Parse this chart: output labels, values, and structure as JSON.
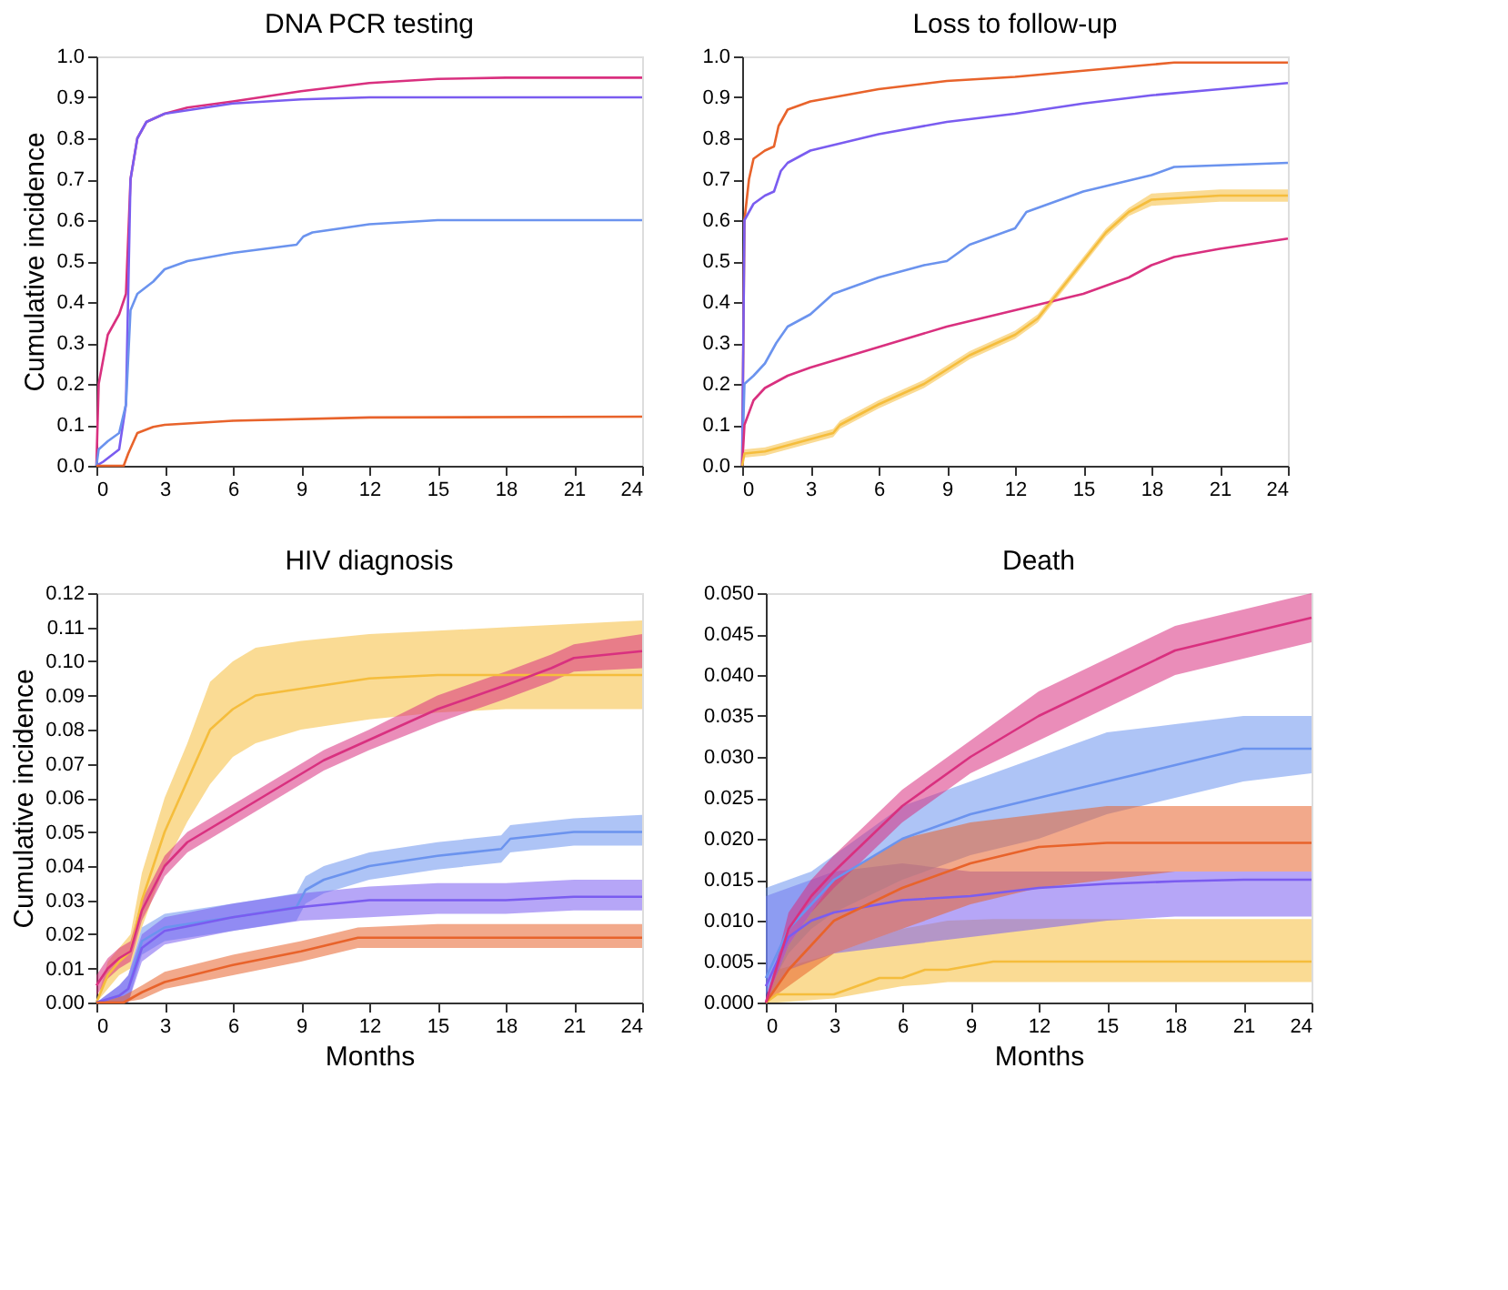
{
  "chart_data": [
    {
      "type": "line",
      "title": "DNA PCR testing",
      "ylabel": "Cumulative incidence",
      "xlim": [
        0,
        24
      ],
      "ylim": [
        0,
        1
      ],
      "xticks": [
        0,
        3,
        6,
        9,
        12,
        15,
        18,
        21,
        24
      ],
      "yticks": [
        {
          "value": 0,
          "label": "0.0"
        },
        {
          "value": 0.1,
          "label": "0.1"
        },
        {
          "value": 0.2,
          "label": "0.2"
        },
        {
          "value": 0.3,
          "label": "0.3"
        },
        {
          "value": 0.4,
          "label": "0.4"
        },
        {
          "value": 0.5,
          "label": "0.5"
        },
        {
          "value": 0.6,
          "label": "0.6"
        },
        {
          "value": 0.7,
          "label": "0.7"
        },
        {
          "value": 0.8,
          "label": "0.8"
        },
        {
          "value": 0.9,
          "label": "0.9"
        },
        {
          "value": 1,
          "label": "1.0"
        }
      ],
      "series": [
        {
          "color": "#d9307f",
          "x": [
            0,
            0.1,
            0.5,
            1,
            1.3,
            1.5,
            1.8,
            2.2,
            3,
            4,
            6,
            9,
            12,
            15,
            18,
            24
          ],
          "values": [
            0,
            0.2,
            0.32,
            0.37,
            0.42,
            0.7,
            0.8,
            0.84,
            0.86,
            0.875,
            0.89,
            0.915,
            0.935,
            0.945,
            0.948,
            0.948
          ]
        },
        {
          "color": "#7a5cf0",
          "x": [
            0,
            0.3,
            1,
            1.3,
            1.5,
            1.8,
            2.2,
            3,
            6,
            9,
            12,
            24
          ],
          "values": [
            0,
            0.01,
            0.04,
            0.15,
            0.7,
            0.8,
            0.84,
            0.86,
            0.885,
            0.895,
            0.9,
            0.9
          ]
        },
        {
          "color": "#6b93ee",
          "x": [
            0,
            0.1,
            0.5,
            1,
            1.3,
            1.5,
            1.8,
            2.5,
            3,
            4,
            6,
            8.8,
            9.1,
            9.5,
            12,
            15,
            24
          ],
          "values": [
            0,
            0.04,
            0.06,
            0.08,
            0.15,
            0.38,
            0.42,
            0.45,
            0.48,
            0.5,
            0.52,
            0.54,
            0.56,
            0.57,
            0.59,
            0.6,
            0.6
          ]
        },
        {
          "color": "#e8632b",
          "x": [
            0,
            1.2,
            1.4,
            1.8,
            2.5,
            3,
            6,
            12,
            24
          ],
          "values": [
            0,
            0,
            0.03,
            0.08,
            0.095,
            0.1,
            0.11,
            0.118,
            0.12
          ]
        }
      ]
    },
    {
      "type": "line",
      "title": "Loss to follow-up",
      "xlim": [
        0,
        24
      ],
      "ylim": [
        0,
        1
      ],
      "xticks": [
        0,
        3,
        6,
        9,
        12,
        15,
        18,
        21,
        24
      ],
      "yticks": [
        {
          "value": 0,
          "label": "0.0"
        },
        {
          "value": 0.1,
          "label": "0.1"
        },
        {
          "value": 0.2,
          "label": "0.2"
        },
        {
          "value": 0.3,
          "label": "0.3"
        },
        {
          "value": 0.4,
          "label": "0.4"
        },
        {
          "value": 0.5,
          "label": "0.5"
        },
        {
          "value": 0.6,
          "label": "0.6"
        },
        {
          "value": 0.7,
          "label": "0.7"
        },
        {
          "value": 0.8,
          "label": "0.8"
        },
        {
          "value": 0.9,
          "label": "0.9"
        },
        {
          "value": 1,
          "label": "1.0"
        }
      ],
      "series": [
        {
          "color": "#e8632b",
          "x": [
            0,
            0.1,
            0.3,
            0.5,
            1,
            1.4,
            1.6,
            2,
            3,
            6,
            9,
            12,
            15,
            18,
            19,
            24
          ],
          "values": [
            0,
            0.6,
            0.7,
            0.75,
            0.77,
            0.78,
            0.83,
            0.87,
            0.89,
            0.92,
            0.94,
            0.95,
            0.965,
            0.98,
            0.985,
            0.985
          ]
        },
        {
          "color": "#7a5cf0",
          "x": [
            0,
            0.1,
            0.5,
            1,
            1.4,
            1.7,
            2,
            3,
            6,
            9,
            12,
            15,
            18,
            21,
            24
          ],
          "values": [
            0,
            0.6,
            0.64,
            0.66,
            0.67,
            0.72,
            0.74,
            0.77,
            0.81,
            0.84,
            0.86,
            0.885,
            0.905,
            0.92,
            0.935
          ]
        },
        {
          "color": "#6b93ee",
          "x": [
            0,
            0.1,
            0.5,
            1,
            1.5,
            2,
            3,
            4,
            5,
            6,
            8,
            9,
            10,
            12,
            12.5,
            15,
            18,
            19,
            24
          ],
          "values": [
            0,
            0.2,
            0.22,
            0.25,
            0.3,
            0.34,
            0.37,
            0.42,
            0.44,
            0.46,
            0.49,
            0.5,
            0.54,
            0.58,
            0.62,
            0.67,
            0.71,
            0.73,
            0.74
          ]
        },
        {
          "color": "#d9307f",
          "x": [
            0,
            0.1,
            0.5,
            1,
            2,
            3,
            6,
            9,
            12,
            15,
            17,
            18,
            19,
            21,
            24
          ],
          "values": [
            0,
            0.1,
            0.16,
            0.19,
            0.22,
            0.24,
            0.29,
            0.34,
            0.38,
            0.42,
            0.46,
            0.49,
            0.51,
            0.53,
            0.555
          ]
        },
        {
          "color": "#f5bd3c",
          "x": [
            0,
            0.1,
            1,
            2,
            3,
            4,
            4.3,
            6,
            8,
            10,
            12,
            13,
            14,
            15,
            16,
            17,
            18,
            21,
            24
          ],
          "values": [
            0,
            0.03,
            0.035,
            0.05,
            0.065,
            0.08,
            0.1,
            0.15,
            0.2,
            0.27,
            0.32,
            0.36,
            0.43,
            0.5,
            0.57,
            0.62,
            0.65,
            0.66,
            0.66
          ],
          "lower": [
            0,
            0.02,
            0.025,
            0.04,
            0.055,
            0.07,
            0.09,
            0.14,
            0.19,
            0.26,
            0.31,
            0.35,
            0.42,
            0.49,
            0.56,
            0.61,
            0.635,
            0.645,
            0.645
          ],
          "upper": [
            0,
            0.04,
            0.045,
            0.06,
            0.075,
            0.09,
            0.11,
            0.16,
            0.21,
            0.28,
            0.33,
            0.37,
            0.44,
            0.51,
            0.58,
            0.63,
            0.665,
            0.675,
            0.675
          ]
        }
      ]
    },
    {
      "type": "line",
      "title": "HIV diagnosis",
      "xlabel": "Months",
      "ylabel": "Cumulative incidence",
      "xlim": [
        0,
        24
      ],
      "ylim": [
        0,
        0.12
      ],
      "xticks": [
        0,
        3,
        6,
        9,
        12,
        15,
        18,
        21,
        24
      ],
      "yticks": [
        {
          "value": 0,
          "label": "0.00"
        },
        {
          "value": 0.01,
          "label": "0.01"
        },
        {
          "value": 0.02,
          "label": "0.02"
        },
        {
          "value": 0.03,
          "label": "0.03"
        },
        {
          "value": 0.04,
          "label": "0.04"
        },
        {
          "value": 0.05,
          "label": "0.05"
        },
        {
          "value": 0.06,
          "label": "0.06"
        },
        {
          "value": 0.07,
          "label": "0.07"
        },
        {
          "value": 0.08,
          "label": "0.08"
        },
        {
          "value": 0.09,
          "label": "0.09"
        },
        {
          "value": 0.1,
          "label": "0.10"
        },
        {
          "value": 0.11,
          "label": "0.11"
        },
        {
          "value": 0.12,
          "label": "0.12"
        }
      ],
      "series": [
        {
          "color": "#f5bd3c",
          "x": [
            0,
            0.5,
            1,
            1.5,
            2,
            3,
            4,
            5,
            6,
            7,
            9,
            12,
            15,
            18,
            21,
            24
          ],
          "values": [
            0,
            0.008,
            0.012,
            0.015,
            0.03,
            0.05,
            0.065,
            0.08,
            0.086,
            0.09,
            0.092,
            0.095,
            0.096,
            0.096,
            0.096,
            0.096
          ],
          "lower": [
            0,
            0.004,
            0.008,
            0.01,
            0.022,
            0.04,
            0.053,
            0.064,
            0.072,
            0.076,
            0.08,
            0.083,
            0.085,
            0.086,
            0.086,
            0.086
          ],
          "upper": [
            0,
            0.012,
            0.016,
            0.02,
            0.038,
            0.06,
            0.076,
            0.094,
            0.1,
            0.104,
            0.106,
            0.108,
            0.109,
            0.11,
            0.111,
            0.112
          ]
        },
        {
          "color": "#d9307f",
          "x": [
            0,
            0.5,
            1,
            1.5,
            2,
            3,
            4,
            6,
            8,
            10,
            12,
            15,
            18,
            20,
            21,
            24
          ],
          "values": [
            0.005,
            0.01,
            0.013,
            0.015,
            0.027,
            0.04,
            0.047,
            0.055,
            0.063,
            0.071,
            0.077,
            0.086,
            0.093,
            0.098,
            0.101,
            0.103
          ],
          "lower": [
            0.002,
            0.007,
            0.01,
            0.012,
            0.024,
            0.037,
            0.044,
            0.052,
            0.06,
            0.068,
            0.074,
            0.082,
            0.089,
            0.094,
            0.097,
            0.098
          ],
          "upper": [
            0.008,
            0.013,
            0.016,
            0.018,
            0.03,
            0.043,
            0.05,
            0.058,
            0.066,
            0.074,
            0.08,
            0.09,
            0.097,
            0.102,
            0.105,
            0.108
          ]
        },
        {
          "color": "#6b93ee",
          "x": [
            0,
            1,
            1.4,
            2,
            3,
            6,
            8.8,
            9.2,
            10,
            12,
            15,
            17.8,
            18.2,
            21,
            24
          ],
          "values": [
            0,
            0.002,
            0.004,
            0.018,
            0.022,
            0.025,
            0.028,
            0.033,
            0.036,
            0.04,
            0.043,
            0.045,
            0.048,
            0.05,
            0.05
          ],
          "lower": [
            0,
            0,
            0,
            0.014,
            0.018,
            0.021,
            0.024,
            0.029,
            0.032,
            0.036,
            0.039,
            0.041,
            0.044,
            0.046,
            0.046
          ],
          "upper": [
            0,
            0.005,
            0.008,
            0.022,
            0.026,
            0.029,
            0.032,
            0.037,
            0.04,
            0.044,
            0.047,
            0.049,
            0.052,
            0.054,
            0.055
          ]
        },
        {
          "color": "#7a5cf0",
          "x": [
            0,
            1,
            1.4,
            2,
            3,
            6,
            9,
            12,
            15,
            18,
            21,
            24
          ],
          "values": [
            0,
            0.002,
            0.004,
            0.016,
            0.021,
            0.025,
            0.028,
            0.03,
            0.03,
            0.03,
            0.031,
            0.031
          ],
          "lower": [
            0,
            0,
            0,
            0.012,
            0.017,
            0.021,
            0.024,
            0.025,
            0.026,
            0.026,
            0.027,
            0.027
          ],
          "upper": [
            0,
            0.005,
            0.008,
            0.02,
            0.025,
            0.029,
            0.032,
            0.034,
            0.035,
            0.035,
            0.036,
            0.036
          ]
        },
        {
          "color": "#e8632b",
          "x": [
            0,
            1.2,
            2,
            3,
            6,
            9,
            11.5,
            15,
            18,
            24
          ],
          "values": [
            0,
            0,
            0.003,
            0.006,
            0.011,
            0.015,
            0.019,
            0.019,
            0.019,
            0.019
          ],
          "lower": [
            0,
            0,
            0.001,
            0.004,
            0.008,
            0.012,
            0.016,
            0.016,
            0.016,
            0.016
          ],
          "upper": [
            0,
            0.002,
            0.005,
            0.009,
            0.014,
            0.018,
            0.022,
            0.023,
            0.023,
            0.023
          ]
        }
      ]
    },
    {
      "type": "line",
      "title": "Death",
      "xlabel": "Months",
      "xlim": [
        0,
        24
      ],
      "ylim": [
        0,
        0.05
      ],
      "xticks": [
        0,
        3,
        6,
        9,
        12,
        15,
        18,
        21,
        24
      ],
      "yticks": [
        {
          "value": 0,
          "label": "0.000"
        },
        {
          "value": 0.005,
          "label": "0.005"
        },
        {
          "value": 0.01,
          "label": "0.010"
        },
        {
          "value": 0.015,
          "label": "0.015"
        },
        {
          "value": 0.02,
          "label": "0.020"
        },
        {
          "value": 0.025,
          "label": "0.025"
        },
        {
          "value": 0.03,
          "label": "0.030"
        },
        {
          "value": 0.035,
          "label": "0.035"
        },
        {
          "value": 0.04,
          "label": "0.040"
        },
        {
          "value": 0.045,
          "label": "0.045"
        },
        {
          "value": 0.05,
          "label": "0.050"
        }
      ],
      "series": [
        {
          "color": "#f5bd3c",
          "x": [
            0,
            0.5,
            3,
            4,
            5,
            6,
            7,
            8,
            10,
            24
          ],
          "values": [
            0,
            0.001,
            0.001,
            0.002,
            0.003,
            0.003,
            0.004,
            0.004,
            0.005,
            0.005
          ],
          "lower": [
            0,
            0,
            0.0005,
            0.001,
            0.0015,
            0.002,
            0.0022,
            0.0025,
            0.0025,
            0.0025
          ],
          "upper": [
            0,
            0.004,
            0.006,
            0.007,
            0.008,
            0.009,
            0.0095,
            0.01,
            0.0102,
            0.0102
          ]
        },
        {
          "color": "#7a5cf0",
          "x": [
            0,
            1,
            2,
            3,
            6,
            9,
            12,
            15,
            18,
            21,
            24
          ],
          "values": [
            0.002,
            0.008,
            0.01,
            0.011,
            0.0125,
            0.013,
            0.014,
            0.0145,
            0.0148,
            0.015,
            0.015
          ],
          "lower": [
            0,
            0.004,
            0.005,
            0.006,
            0.007,
            0.008,
            0.009,
            0.01,
            0.0105,
            0.0105,
            0.0105
          ],
          "upper": [
            0.013,
            0.014,
            0.015,
            0.016,
            0.017,
            0.016,
            0.016,
            0.016,
            0.016,
            0.016,
            0.016
          ]
        },
        {
          "color": "#6b93ee",
          "x": [
            0,
            1,
            2,
            3,
            6,
            9,
            12,
            15,
            18,
            21,
            24
          ],
          "values": [
            0.003,
            0.009,
            0.012,
            0.015,
            0.02,
            0.023,
            0.025,
            0.027,
            0.029,
            0.031,
            0.031
          ],
          "lower": [
            0.001,
            0.006,
            0.009,
            0.011,
            0.015,
            0.018,
            0.02,
            0.023,
            0.025,
            0.027,
            0.028
          ],
          "upper": [
            0.014,
            0.015,
            0.016,
            0.018,
            0.024,
            0.027,
            0.03,
            0.033,
            0.034,
            0.035,
            0.035
          ]
        },
        {
          "color": "#e8632b",
          "x": [
            0,
            1,
            2,
            3,
            6,
            9,
            12,
            15,
            18,
            24
          ],
          "values": [
            0,
            0.004,
            0.007,
            0.01,
            0.014,
            0.017,
            0.019,
            0.0195,
            0.0195,
            0.0195
          ],
          "lower": [
            0,
            0.002,
            0.004,
            0.006,
            0.009,
            0.012,
            0.014,
            0.015,
            0.016,
            0.016
          ],
          "upper": [
            0,
            0.007,
            0.011,
            0.015,
            0.02,
            0.022,
            0.023,
            0.024,
            0.024,
            0.024
          ]
        },
        {
          "color": "#d9307f",
          "x": [
            0,
            1,
            2,
            3,
            6,
            9,
            12,
            15,
            18,
            21,
            24
          ],
          "values": [
            0,
            0.009,
            0.013,
            0.016,
            0.024,
            0.03,
            0.035,
            0.039,
            0.043,
            0.045,
            0.047
          ],
          "lower": [
            0,
            0.007,
            0.011,
            0.014,
            0.022,
            0.028,
            0.032,
            0.036,
            0.04,
            0.042,
            0.044
          ],
          "upper": [
            0,
            0.011,
            0.015,
            0.018,
            0.026,
            0.032,
            0.038,
            0.042,
            0.046,
            0.048,
            0.05
          ]
        }
      ]
    }
  ]
}
